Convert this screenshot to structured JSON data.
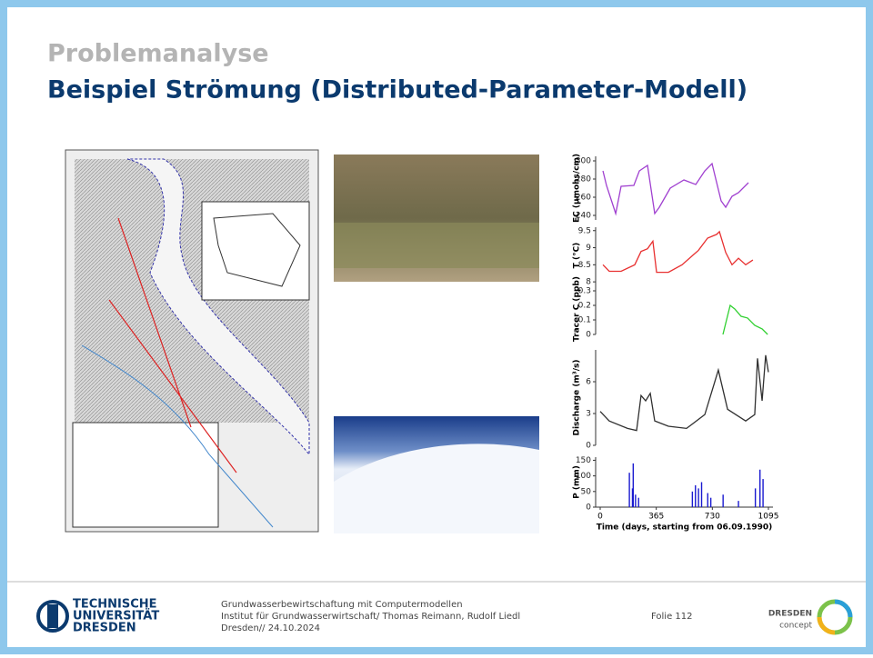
{
  "header": {
    "title": "Problemanalyse",
    "subtitle": "Beispiel Strömung (Distributed-Parameter-Modell)"
  },
  "chart_data": [
    {
      "type": "line",
      "ylabel": "EC (µmohs/cm)",
      "color": "#a040d0",
      "xlim": [
        0,
        1095
      ],
      "ylim": [
        235,
        305
      ],
      "yticks": [
        240,
        260,
        280,
        300
      ],
      "x": [
        18,
        41,
        101,
        136,
        219,
        255,
        308,
        355,
        385,
        456,
        545,
        622,
        681,
        728,
        787,
        817,
        858,
        900,
        965
      ],
      "values": [
        289,
        273,
        242,
        272,
        273,
        289,
        295,
        242,
        249,
        270,
        279,
        274,
        289,
        297,
        256,
        249,
        261,
        265,
        276
      ]
    },
    {
      "type": "line",
      "ylabel": "T (°C)",
      "color": "#e83030",
      "xlim": [
        0,
        1095
      ],
      "ylim": [
        7.95,
        9.6
      ],
      "yticks": [
        8,
        8.5,
        9,
        9.5
      ],
      "x": [
        18,
        59,
        136,
        225,
        266,
        308,
        343,
        367,
        444,
        533,
        639,
        699,
        758,
        776,
        817,
        858,
        900,
        947,
        994
      ],
      "values": [
        8.5,
        8.31,
        8.31,
        8.5,
        8.89,
        8.97,
        9.19,
        8.28,
        8.28,
        8.5,
        8.92,
        9.28,
        9.39,
        9.47,
        8.86,
        8.5,
        8.69,
        8.5,
        8.64
      ]
    },
    {
      "type": "line",
      "ylabel": "Tracer C (ppb)",
      "color": "#30d030",
      "xlim": [
        0,
        1095
      ],
      "ylim": [
        0,
        0.35
      ],
      "yticks": [
        0,
        0.1,
        0.2,
        0.3
      ],
      "x": [
        799,
        846,
        876,
        917,
        959,
        1006,
        1054,
        1090
      ],
      "values": [
        0,
        0.2,
        0.175,
        0.125,
        0.113,
        0.063,
        0.038,
        0
      ]
    },
    {
      "type": "line",
      "ylabel": "Discharge (m³/s)",
      "color": "#303030",
      "xlim": [
        0,
        1095
      ],
      "ylim": [
        0,
        9
      ],
      "yticks": [
        0,
        3,
        6
      ],
      "x": [
        0,
        59,
        178,
        237,
        266,
        296,
        326,
        355,
        444,
        562,
        681,
        769,
        829,
        947,
        1006,
        1024,
        1054,
        1077,
        1095
      ],
      "values": [
        3.2,
        2.3,
        1.6,
        1.4,
        4.7,
        4.2,
        4.9,
        2.3,
        1.8,
        1.6,
        2.9,
        7.1,
        3.4,
        2.3,
        2.9,
        8.2,
        4.2,
        8.5,
        6.9
      ]
    },
    {
      "type": "bar",
      "ylabel": "P (mm)",
      "color": "#1a1ad0",
      "xlim": [
        0,
        1095
      ],
      "ylim": [
        0,
        160
      ],
      "yticks": [
        0,
        50,
        100,
        150
      ],
      "xticks": [
        0,
        365,
        730,
        1095
      ],
      "xlabel": "Time (days, starting from 06.09.1990)",
      "x": [
        190,
        210,
        215,
        230,
        250,
        600,
        620,
        640,
        660,
        700,
        720,
        800,
        900,
        1010,
        1040,
        1060
      ],
      "values": [
        110,
        60,
        140,
        40,
        30,
        50,
        70,
        60,
        80,
        45,
        30,
        40,
        20,
        60,
        120,
        90
      ]
    }
  ],
  "footer": {
    "logo": [
      "TECHNISCHE",
      "UNIVERSITÄT",
      "DRESDEN"
    ],
    "lines": [
      "Grundwasserbewirtschaftung mit Computermodellen",
      "Institut für Grundwasserwirtschaft/ Thomas Reimann, Rudolf Liedl",
      "Dresden// 24.10.2024"
    ],
    "slide": "Folie 112",
    "brand": [
      "DRESDEN",
      "concept"
    ]
  }
}
